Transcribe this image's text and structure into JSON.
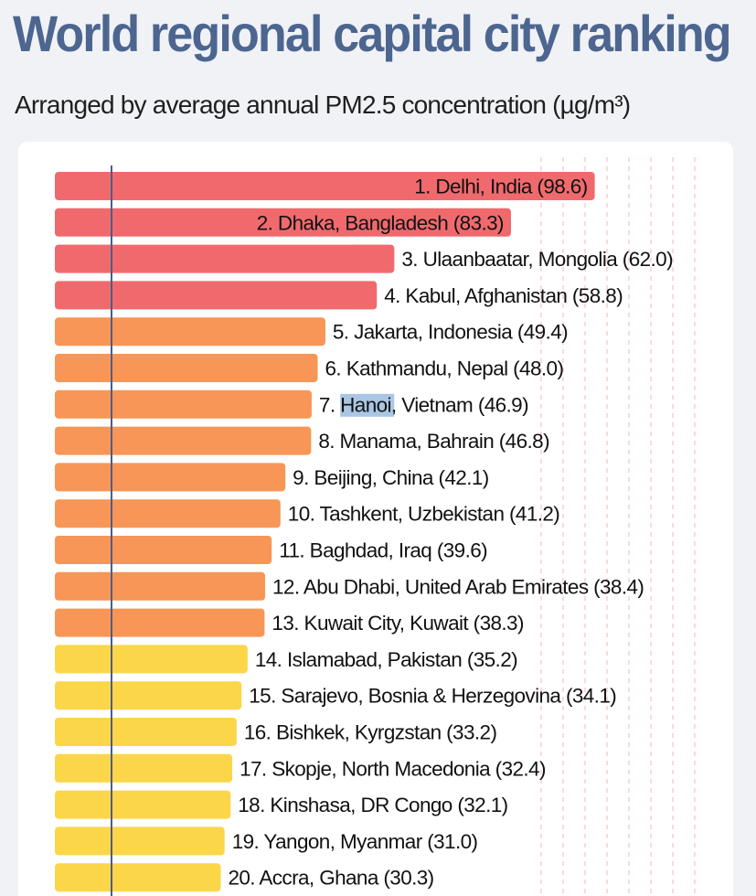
{
  "title": "World regional capital city ranking",
  "subtitle": "Arranged by average annual PM2.5 concentration (µg/m³)",
  "colors": {
    "title": "#4c6690",
    "red": "#f06a6d",
    "orange": "#f79657",
    "yellow": "#fbd649",
    "highlight": "#a9c6e3",
    "axis_line": "#4e5d85",
    "grid": "#f0b8b0"
  },
  "chart_data": {
    "type": "bar",
    "orientation": "horizontal",
    "title": "World regional capital city ranking",
    "subtitle": "Arranged by average annual PM2.5 concentration (µg/m³)",
    "xlabel": "",
    "ylabel": "",
    "unit": "µg/m³",
    "grid": true,
    "highlight_word": "Hanoi",
    "bars": [
      {
        "rank": 1,
        "label": "1. Delhi, India (98.6)",
        "value": 98.6,
        "color_group": "red"
      },
      {
        "rank": 2,
        "label": "2. Dhaka, Bangladesh (83.3)",
        "value": 83.3,
        "color_group": "red"
      },
      {
        "rank": 3,
        "label": "3. Ulaanbaatar, Mongolia (62.0)",
        "value": 62.0,
        "color_group": "red"
      },
      {
        "rank": 4,
        "label": "4. Kabul, Afghanistan (58.8)",
        "value": 58.8,
        "color_group": "red"
      },
      {
        "rank": 5,
        "label": "5. Jakarta, Indonesia (49.4)",
        "value": 49.4,
        "color_group": "orange"
      },
      {
        "rank": 6,
        "label": "6. Kathmandu, Nepal (48.0)",
        "value": 48.0,
        "color_group": "orange"
      },
      {
        "rank": 7,
        "label": "7. Hanoi, Vietnam (46.9)",
        "value": 46.9,
        "color_group": "orange"
      },
      {
        "rank": 8,
        "label": "8. Manama, Bahrain (46.8)",
        "value": 46.8,
        "color_group": "orange"
      },
      {
        "rank": 9,
        "label": "9. Beijing, China (42.1)",
        "value": 42.1,
        "color_group": "orange"
      },
      {
        "rank": 10,
        "label": "10. Tashkent, Uzbekistan (41.2)",
        "value": 41.2,
        "color_group": "orange"
      },
      {
        "rank": 11,
        "label": "11. Baghdad, Iraq (39.6)",
        "value": 39.6,
        "color_group": "orange"
      },
      {
        "rank": 12,
        "label": "12. Abu Dhabi, United Arab Emirates (38.4)",
        "value": 38.4,
        "color_group": "orange"
      },
      {
        "rank": 13,
        "label": "13. Kuwait City, Kuwait (38.3)",
        "value": 38.3,
        "color_group": "orange"
      },
      {
        "rank": 14,
        "label": "14. Islamabad, Pakistan (35.2)",
        "value": 35.2,
        "color_group": "yellow"
      },
      {
        "rank": 15,
        "label": "15. Sarajevo, Bosnia & Herzegovina (34.1)",
        "value": 34.1,
        "color_group": "yellow"
      },
      {
        "rank": 16,
        "label": "16. Bishkek, Kyrgzstan (33.2)",
        "value": 33.2,
        "color_group": "yellow"
      },
      {
        "rank": 17,
        "label": "17. Skopje, North Macedonia (32.4)",
        "value": 32.4,
        "color_group": "yellow"
      },
      {
        "rank": 18,
        "label": "18. Kinshasa, DR Congo  (32.1)",
        "value": 32.1,
        "color_group": "yellow"
      },
      {
        "rank": 19,
        "label": "19. Yangon, Myanmar (31.0)",
        "value": 31.0,
        "color_group": "yellow"
      },
      {
        "rank": 20,
        "label": "20. Accra, Ghana (30.3)",
        "value": 30.3,
        "color_group": "yellow"
      }
    ]
  }
}
